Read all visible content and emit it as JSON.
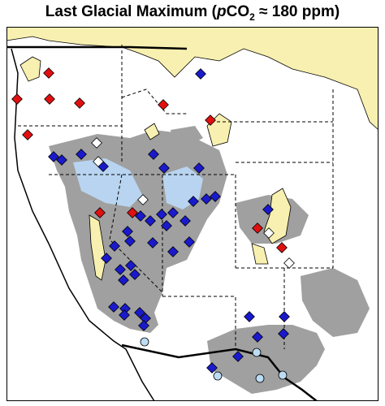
{
  "title": {
    "prefix": "Last Glacial Maximum (",
    "italic": "p",
    "main": "CO",
    "subscript": "2",
    "suffix": " ≈ 180 ppm)"
  }
}
